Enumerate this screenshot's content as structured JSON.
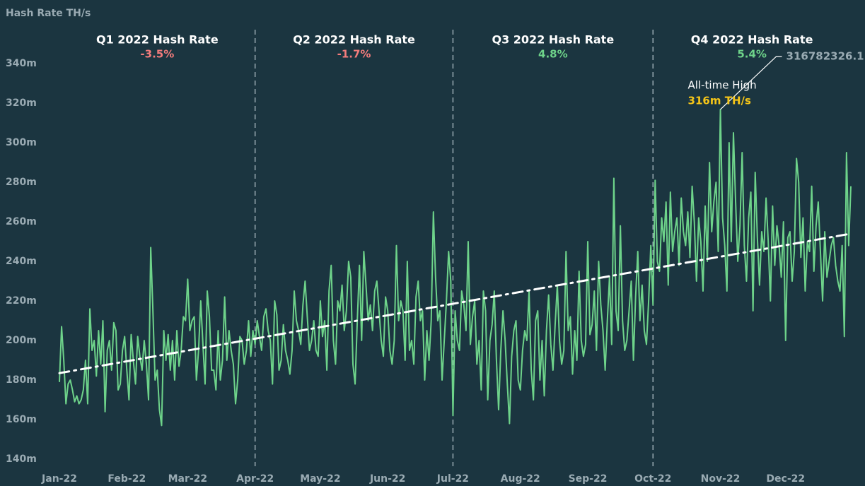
{
  "chart_data": {
    "type": "line",
    "y_axis_label": "Hash Rate TH/s",
    "ylim": [
      140,
      350
    ],
    "yticks": [
      {
        "value": 140,
        "label": "140m"
      },
      {
        "value": 160,
        "label": "160m"
      },
      {
        "value": 180,
        "label": "180m"
      },
      {
        "value": 200,
        "label": "200m"
      },
      {
        "value": 220,
        "label": "220m"
      },
      {
        "value": 240,
        "label": "240m"
      },
      {
        "value": 260,
        "label": "260m"
      },
      {
        "value": 280,
        "label": "280m"
      },
      {
        "value": 300,
        "label": "300m"
      },
      {
        "value": 320,
        "label": "320m"
      },
      {
        "value": 340,
        "label": "340m"
      }
    ],
    "xlim": [
      0,
      364
    ],
    "xticks": [
      {
        "value": 0,
        "label": "Jan-22"
      },
      {
        "value": 31,
        "label": "Feb-22"
      },
      {
        "value": 59,
        "label": "Mar-22"
      },
      {
        "value": 90,
        "label": "Apr-22"
      },
      {
        "value": 120,
        "label": "May-22"
      },
      {
        "value": 151,
        "label": "Jun-22"
      },
      {
        "value": 181,
        "label": "Jul-22"
      },
      {
        "value": 212,
        "label": "Aug-22"
      },
      {
        "value": 243,
        "label": "Sep-22"
      },
      {
        "value": 273,
        "label": "Oct-22"
      },
      {
        "value": 304,
        "label": "Nov-22"
      },
      {
        "value": 334,
        "label": "Dec-22"
      }
    ],
    "quarters": [
      {
        "title": "Q1 2022 Hash Rate",
        "change": -3.5,
        "label": "-3.5%",
        "start": 0,
        "end": 90,
        "color": "#f47c7c"
      },
      {
        "title": "Q2 2022 Hash Rate",
        "change": -1.7,
        "label": "-1.7%",
        "start": 90,
        "end": 181,
        "color": "#f47c7c"
      },
      {
        "title": "Q3 2022 Hash Rate",
        "change": 4.8,
        "label": "4.8%",
        "start": 181,
        "end": 273,
        "color": "#6ed38a"
      },
      {
        "title": "Q4 2022 Hash Rate",
        "change": 5.4,
        "label": "5.4%",
        "start": 273,
        "end": 364,
        "color": "#6ed38a"
      }
    ],
    "annotation": {
      "text": "All-time High",
      "value_text": "316m TH/s",
      "raw_value": "316782326.1",
      "color": "#f5c518"
    },
    "trend": {
      "x": [
        0,
        364
      ],
      "values": [
        183.5,
        254
      ],
      "color": "#ffffff"
    },
    "series": [
      {
        "name": "Hash Rate",
        "color": "#6ed38a",
        "values": [
          179,
          207,
          190,
          168,
          178,
          180,
          175,
          169,
          172,
          168,
          170,
          175,
          190,
          168,
          216,
          195,
          200,
          182,
          205,
          188,
          210,
          164,
          195,
          200,
          185,
          209,
          205,
          175,
          178,
          195,
          202,
          185,
          170,
          203,
          190,
          178,
          202,
          192,
          185,
          200,
          188,
          170,
          247,
          215,
          180,
          185,
          165,
          157,
          205,
          190,
          203,
          185,
          200,
          180,
          205,
          187,
          195,
          212,
          210,
          231,
          205,
          210,
          212,
          180,
          195,
          220,
          198,
          178,
          225,
          212,
          185,
          185,
          175,
          205,
          180,
          190,
          222,
          190,
          205,
          195,
          188,
          168,
          180,
          202,
          200,
          188,
          195,
          210,
          192,
          205,
          198,
          210,
          202,
          195,
          212,
          216,
          205,
          200,
          178,
          220,
          213,
          185,
          190,
          208,
          195,
          190,
          183,
          195,
          225,
          210,
          205,
          198,
          218,
          230,
          212,
          195,
          200,
          210,
          195,
          192,
          220,
          202,
          210,
          185,
          225,
          238,
          200,
          188,
          220,
          215,
          228,
          205,
          215,
          240,
          232,
          188,
          178,
          210,
          238,
          200,
          245,
          228,
          210,
          218,
          205,
          225,
          230,
          215,
          200,
          192,
          222,
          215,
          195,
          188,
          200,
          248,
          210,
          220,
          215,
          190,
          240,
          195,
          200,
          188,
          222,
          230,
          210,
          215,
          180,
          205,
          190,
          210,
          265,
          232,
          210,
          215,
          180,
          200,
          220,
          245,
          230,
          162,
          215,
          200,
          195,
          225,
          218,
          205,
          250,
          198,
          212,
          220,
          188,
          200,
          175,
          225,
          215,
          170,
          200,
          208,
          225,
          190,
          165,
          195,
          215,
          200,
          178,
          158,
          192,
          205,
          210,
          180,
          175,
          195,
          205,
          200,
          225,
          185,
          170,
          210,
          215,
          180,
          200,
          172,
          205,
          223,
          198,
          185,
          208,
          228,
          200,
          188,
          195,
          245,
          205,
          212,
          183,
          205,
          190,
          235,
          200,
          192,
          198,
          250,
          203,
          208,
          225,
          195,
          240,
          218,
          205,
          185,
          210,
          232,
          198,
          282,
          215,
          205,
          258,
          210,
          195,
          200,
          215,
          230,
          190,
          222,
          245,
          210,
          228,
          205,
          198,
          220,
          248,
          218,
          281,
          240,
          235,
          262,
          250,
          270,
          228,
          275,
          245,
          255,
          262,
          238,
          272,
          255,
          248,
          265,
          242,
          278,
          260,
          230,
          262,
          250,
          225,
          268,
          240,
          290,
          255,
          270,
          280,
          245,
          316.8,
          262,
          248,
          225,
          300,
          250,
          305,
          270,
          240,
          258,
          295,
          248,
          230,
          262,
          275,
          215,
          285,
          252,
          228,
          255,
          245,
          272,
          250,
          220,
          268,
          238,
          258,
          248,
          232,
          260,
          200,
          252,
          255,
          230,
          245,
          292,
          280,
          242,
          262,
          225,
          250,
          245,
          278,
          235,
          258,
          270,
          245,
          220,
          255,
          232,
          240,
          248,
          252,
          238,
          230,
          225,
          248,
          202,
          295,
          248,
          278
        ]
      }
    ]
  }
}
